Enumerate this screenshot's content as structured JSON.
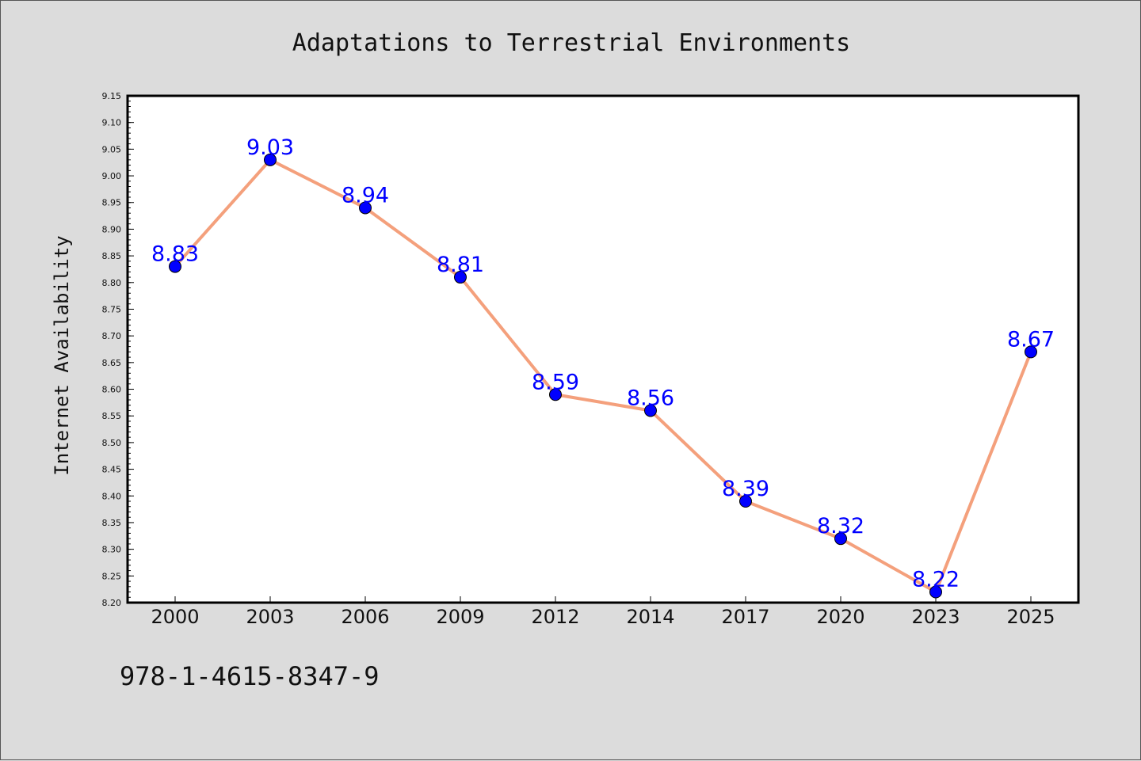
{
  "chart_data": {
    "type": "line",
    "title": "Adaptations to Terrestrial Environments",
    "xlabel": "",
    "ylabel": "Internet Availability",
    "categories": [
      "2000",
      "2003",
      "2006",
      "2009",
      "2012",
      "2014",
      "2017",
      "2020",
      "2023",
      "2025"
    ],
    "series": [
      {
        "values": [
          8.83,
          9.03,
          8.94,
          8.81,
          8.59,
          8.56,
          8.39,
          8.32,
          8.22,
          8.67
        ]
      }
    ],
    "data_labels": [
      "8.83",
      "9.03",
      "8.94",
      "8.81",
      "8.59",
      "8.56",
      "8.39",
      "8.32",
      "8.22",
      "8.67"
    ],
    "ylim": [
      8.2,
      9.15
    ],
    "y_ticks": [
      "8.20",
      "8.25",
      "8.30",
      "8.35",
      "8.40",
      "8.45",
      "8.50",
      "8.55",
      "8.60",
      "8.65",
      "8.70",
      "8.75",
      "8.80",
      "8.85",
      "8.90",
      "8.95",
      "9.00",
      "9.05",
      "9.10",
      "9.15"
    ],
    "grid": false,
    "legend": "none",
    "colors": {
      "line": "#f4a07c",
      "marker": "#0000ff",
      "data_label": "#0000ff",
      "plot_background": "#ffffff",
      "figure_background": "#dcdcdc"
    }
  },
  "caption": "978-1-4615-8347-9"
}
